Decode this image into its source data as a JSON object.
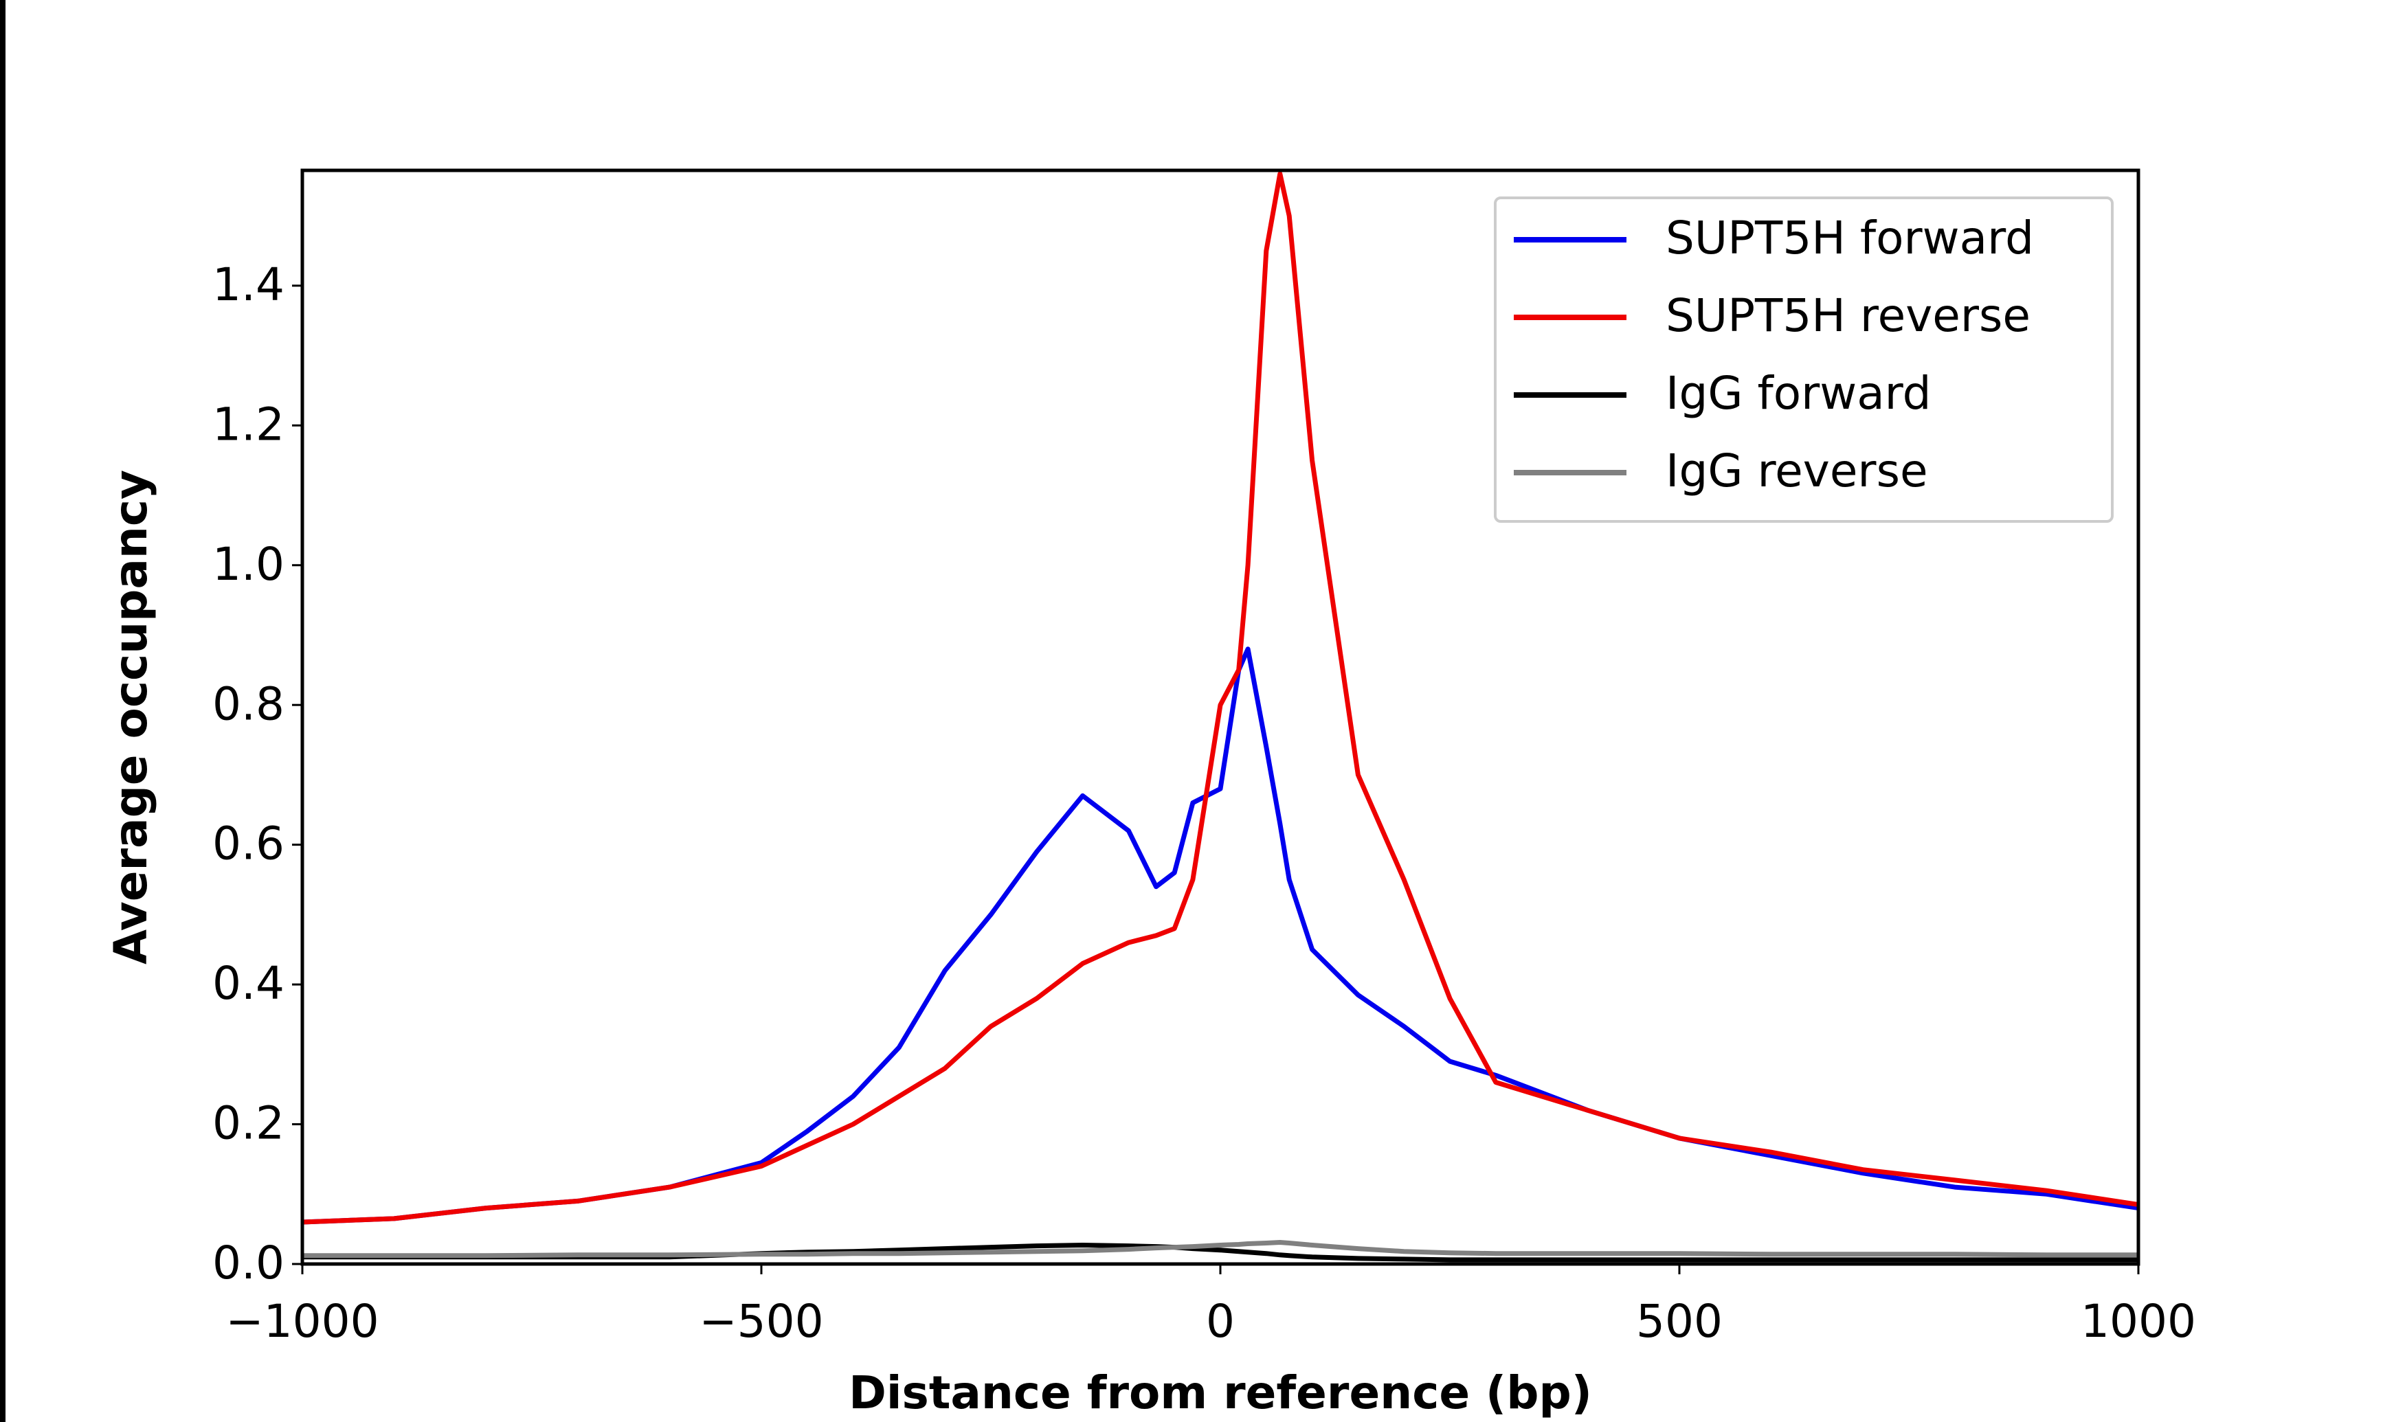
{
  "chart_data": {
    "type": "line",
    "xlabel": "Distance from reference (bp)",
    "ylabel": "Average occupancy",
    "x": [
      -1000,
      -900,
      -800,
      -700,
      -600,
      -500,
      -450,
      -400,
      -350,
      -300,
      -250,
      -200,
      -150,
      -100,
      -70,
      -50,
      -30,
      0,
      20,
      30,
      50,
      65,
      75,
      100,
      150,
      200,
      250,
      300,
      400,
      500,
      600,
      700,
      800,
      900,
      1000
    ],
    "series": [
      {
        "name": "SUPT5H forward",
        "color": "#0000ee",
        "values": [
          0.06,
          0.065,
          0.08,
          0.09,
          0.11,
          0.145,
          0.19,
          0.24,
          0.31,
          0.42,
          0.5,
          0.59,
          0.67,
          0.62,
          0.54,
          0.56,
          0.66,
          0.68,
          0.85,
          0.88,
          0.74,
          0.63,
          0.55,
          0.45,
          0.385,
          0.34,
          0.29,
          0.27,
          0.22,
          0.18,
          0.155,
          0.13,
          0.11,
          0.1,
          0.08
        ]
      },
      {
        "name": "SUPT5H reverse",
        "color": "#ee0000",
        "values": [
          0.06,
          0.065,
          0.08,
          0.09,
          0.11,
          0.14,
          0.17,
          0.2,
          0.24,
          0.28,
          0.34,
          0.38,
          0.43,
          0.46,
          0.47,
          0.48,
          0.55,
          0.8,
          0.85,
          1.0,
          1.45,
          1.56,
          1.5,
          1.15,
          0.7,
          0.55,
          0.38,
          0.26,
          0.22,
          0.18,
          0.16,
          0.135,
          0.12,
          0.105,
          0.085
        ]
      },
      {
        "name": "IgG forward",
        "color": "#000000",
        "values": [
          0.01,
          0.01,
          0.01,
          0.01,
          0.01,
          0.015,
          0.017,
          0.018,
          0.02,
          0.022,
          0.024,
          0.026,
          0.027,
          0.026,
          0.025,
          0.024,
          0.022,
          0.02,
          0.018,
          0.017,
          0.015,
          0.013,
          0.012,
          0.01,
          0.008,
          0.007,
          0.006,
          0.006,
          0.006,
          0.006,
          0.006,
          0.006,
          0.006,
          0.006,
          0.006
        ]
      },
      {
        "name": "IgG reverse",
        "color": "#808080",
        "values": [
          0.012,
          0.012,
          0.012,
          0.013,
          0.013,
          0.014,
          0.014,
          0.015,
          0.015,
          0.016,
          0.017,
          0.018,
          0.019,
          0.021,
          0.023,
          0.024,
          0.025,
          0.027,
          0.028,
          0.029,
          0.03,
          0.031,
          0.03,
          0.027,
          0.022,
          0.018,
          0.016,
          0.015,
          0.015,
          0.015,
          0.014,
          0.014,
          0.014,
          0.013,
          0.013
        ]
      }
    ],
    "xlim": [
      -1000,
      1000
    ],
    "xticks": [
      {
        "value": -1000,
        "label": "−1000"
      },
      {
        "value": -500,
        "label": "−500"
      },
      0,
      500,
      1000
    ],
    "ylim": [
      0,
      1.565
    ],
    "yticks": [
      {
        "value": 0,
        "label": "0.0"
      },
      0.2,
      0.4,
      0.6,
      0.8,
      {
        "value": 1,
        "label": "1.0"
      },
      1.2,
      1.4
    ],
    "legend": "upper right"
  }
}
